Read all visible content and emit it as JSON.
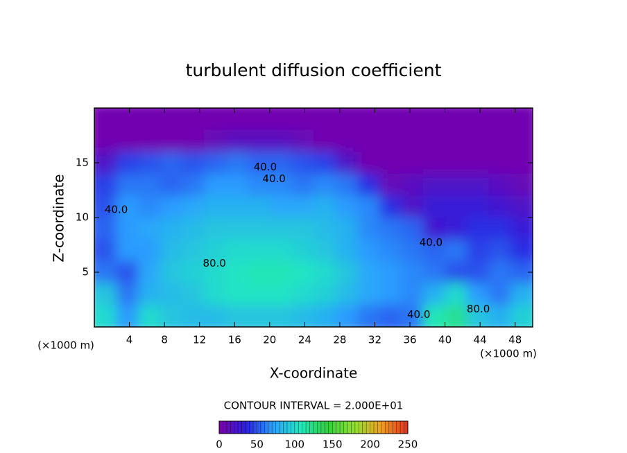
{
  "chart_data": {
    "type": "heatmap",
    "title": "turbulent diffusion coefficient",
    "x_label": "X-coordinate",
    "y_label": "Z-coordinate",
    "x_unit": "(×1000 m)",
    "xlim": [
      0,
      50
    ],
    "xticks": [
      4,
      8,
      12,
      16,
      20,
      24,
      28,
      32,
      36,
      40,
      44,
      48
    ],
    "ylim": [
      0,
      20
    ],
    "yticks": [
      5,
      10,
      15
    ],
    "x": [
      1.25,
      3.75,
      6.25,
      8.75,
      11.25,
      13.75,
      16.25,
      18.75,
      21.25,
      23.75,
      26.25,
      28.75,
      31.25,
      33.75,
      36.25,
      38.75,
      41.25,
      43.75,
      46.25,
      48.75
    ],
    "y": [
      19,
      17,
      15,
      13,
      11,
      9,
      7,
      5,
      3,
      1
    ],
    "z": [
      [
        5,
        5,
        5,
        5,
        5,
        5,
        5,
        5,
        5,
        5,
        5,
        5,
        5,
        5,
        5,
        5,
        5,
        5,
        5,
        5
      ],
      [
        5,
        5,
        5,
        5,
        5,
        10,
        15,
        15,
        15,
        10,
        5,
        5,
        5,
        5,
        5,
        5,
        5,
        5,
        5,
        5
      ],
      [
        20,
        45,
        50,
        55,
        50,
        55,
        60,
        55,
        55,
        50,
        45,
        20,
        5,
        5,
        5,
        5,
        5,
        5,
        5,
        5
      ],
      [
        45,
        60,
        60,
        55,
        60,
        70,
        70,
        65,
        65,
        60,
        65,
        60,
        40,
        10,
        15,
        20,
        20,
        20,
        15,
        10
      ],
      [
        50,
        70,
        65,
        70,
        75,
        80,
        80,
        80,
        75,
        75,
        80,
        70,
        65,
        40,
        20,
        30,
        30,
        30,
        25,
        20
      ],
      [
        55,
        70,
        75,
        80,
        85,
        90,
        90,
        90,
        90,
        90,
        85,
        80,
        65,
        60,
        55,
        25,
        30,
        40,
        40,
        30
      ],
      [
        50,
        70,
        70,
        85,
        90,
        95,
        100,
        100,
        100,
        95,
        90,
        80,
        70,
        65,
        60,
        55,
        60,
        45,
        50,
        40
      ],
      [
        60,
        50,
        75,
        90,
        95,
        100,
        105,
        110,
        110,
        105,
        100,
        90,
        75,
        70,
        65,
        60,
        50,
        50,
        60,
        55
      ],
      [
        90,
        60,
        80,
        85,
        90,
        100,
        105,
        105,
        105,
        100,
        95,
        85,
        75,
        70,
        65,
        80,
        100,
        70,
        60,
        80
      ],
      [
        100,
        70,
        100,
        90,
        85,
        85,
        90,
        90,
        90,
        85,
        80,
        70,
        60,
        55,
        60,
        110,
        120,
        90,
        80,
        95
      ]
    ],
    "colormap": [
      "#7d00a8",
      "#2a20e0",
      "#2aa0ff",
      "#20e8c0",
      "#30d040",
      "#90e030",
      "#f0a020",
      "#e03020"
    ],
    "contour_labels": [
      {
        "value": 40,
        "label": "40.0",
        "x": 19.5,
        "y": 14.6
      },
      {
        "value": 40,
        "label": "40.0",
        "x": 20.5,
        "y": 13.5
      },
      {
        "value": 40,
        "label": "40.0",
        "x": 2.5,
        "y": 10.7
      },
      {
        "value": 80,
        "label": "80.0",
        "x": 13.7,
        "y": 5.8
      },
      {
        "value": 40,
        "label": "40.0",
        "x": 38.4,
        "y": 7.7
      },
      {
        "value": 80,
        "label": "80.0",
        "x": 43.8,
        "y": 1.6
      },
      {
        "value": 40,
        "label": "40.0",
        "x": 37,
        "y": 1.1
      }
    ],
    "contour_interval_label": "CONTOUR INTERVAL = 2.000E+01",
    "colorbar": {
      "lim": [
        0,
        250
      ],
      "ticks": [
        0,
        50,
        100,
        150,
        200,
        250
      ]
    }
  }
}
